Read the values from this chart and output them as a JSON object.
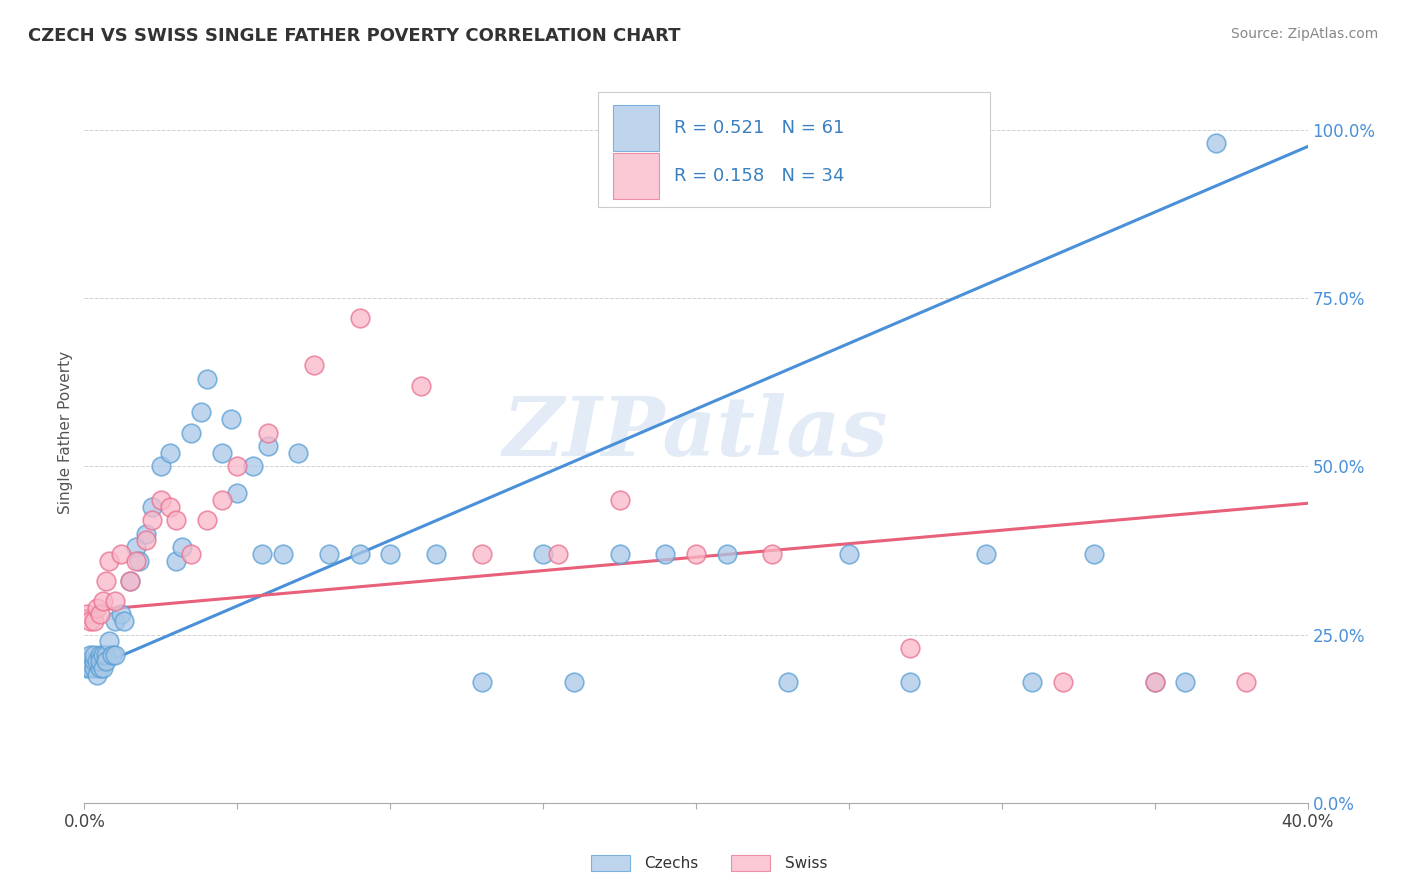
{
  "title": "CZECH VS SWISS SINGLE FATHER POVERTY CORRELATION CHART",
  "source": "Source: ZipAtlas.com",
  "ylabel": "Single Father Poverty",
  "xmin": 0.0,
  "xmax": 0.4,
  "ymin": 0.0,
  "ymax": 1.1,
  "czech_color": "#a8c8e8",
  "czech_edge_color": "#5a9fd4",
  "swiss_color": "#f9b8c8",
  "swiss_edge_color": "#e87090",
  "czech_line_color": "#4a90d9",
  "swiss_line_color": "#e8607a",
  "r_czech": 0.521,
  "n_czech": 61,
  "r_swiss": 0.158,
  "n_swiss": 34,
  "watermark": "ZIPatlas",
  "legend_czechs": "Czechs",
  "legend_swiss": "Swiss",
  "ytick_vals": [
    0.0,
    0.25,
    0.5,
    0.75,
    1.0
  ],
  "ytick_labels": [
    "0.0%",
    "25.0%",
    "50.0%",
    "75.0%",
    "100.0%"
  ],
  "czech_line_x": [
    0.0,
    0.4
  ],
  "czech_line_y": [
    0.195,
    0.975
  ],
  "swiss_line_x": [
    0.0,
    0.4
  ],
  "swiss_line_y": [
    0.285,
    0.445
  ],
  "cz_x": [
    0.001,
    0.001,
    0.002,
    0.002,
    0.003,
    0.003,
    0.003,
    0.004,
    0.004,
    0.005,
    0.005,
    0.005,
    0.006,
    0.006,
    0.007,
    0.007,
    0.008,
    0.009,
    0.01,
    0.01,
    0.012,
    0.013,
    0.015,
    0.017,
    0.018,
    0.02,
    0.022,
    0.025,
    0.028,
    0.03,
    0.032,
    0.035,
    0.038,
    0.04,
    0.045,
    0.048,
    0.05,
    0.055,
    0.058,
    0.06,
    0.065,
    0.07,
    0.08,
    0.09,
    0.1,
    0.115,
    0.13,
    0.15,
    0.16,
    0.175,
    0.19,
    0.21,
    0.23,
    0.25,
    0.27,
    0.295,
    0.31,
    0.33,
    0.35,
    0.36,
    0.37
  ],
  "cz_y": [
    0.2,
    0.21,
    0.2,
    0.22,
    0.2,
    0.21,
    0.22,
    0.19,
    0.21,
    0.2,
    0.22,
    0.21,
    0.2,
    0.22,
    0.22,
    0.21,
    0.24,
    0.22,
    0.27,
    0.22,
    0.28,
    0.27,
    0.33,
    0.38,
    0.36,
    0.4,
    0.44,
    0.5,
    0.52,
    0.36,
    0.38,
    0.55,
    0.58,
    0.63,
    0.52,
    0.57,
    0.46,
    0.5,
    0.37,
    0.53,
    0.37,
    0.52,
    0.37,
    0.37,
    0.37,
    0.37,
    0.18,
    0.37,
    0.18,
    0.37,
    0.37,
    0.37,
    0.18,
    0.37,
    0.18,
    0.37,
    0.18,
    0.37,
    0.18,
    0.18,
    0.98
  ],
  "sw_x": [
    0.001,
    0.002,
    0.003,
    0.004,
    0.005,
    0.006,
    0.007,
    0.008,
    0.01,
    0.012,
    0.015,
    0.017,
    0.02,
    0.022,
    0.025,
    0.028,
    0.03,
    0.035,
    0.04,
    0.045,
    0.05,
    0.06,
    0.075,
    0.09,
    0.11,
    0.13,
    0.155,
    0.175,
    0.2,
    0.225,
    0.27,
    0.32,
    0.35,
    0.38
  ],
  "sw_y": [
    0.28,
    0.27,
    0.27,
    0.29,
    0.28,
    0.3,
    0.33,
    0.36,
    0.3,
    0.37,
    0.33,
    0.36,
    0.39,
    0.42,
    0.45,
    0.44,
    0.42,
    0.37,
    0.42,
    0.45,
    0.5,
    0.55,
    0.65,
    0.72,
    0.62,
    0.37,
    0.37,
    0.45,
    0.37,
    0.37,
    0.23,
    0.18,
    0.18,
    0.18
  ]
}
